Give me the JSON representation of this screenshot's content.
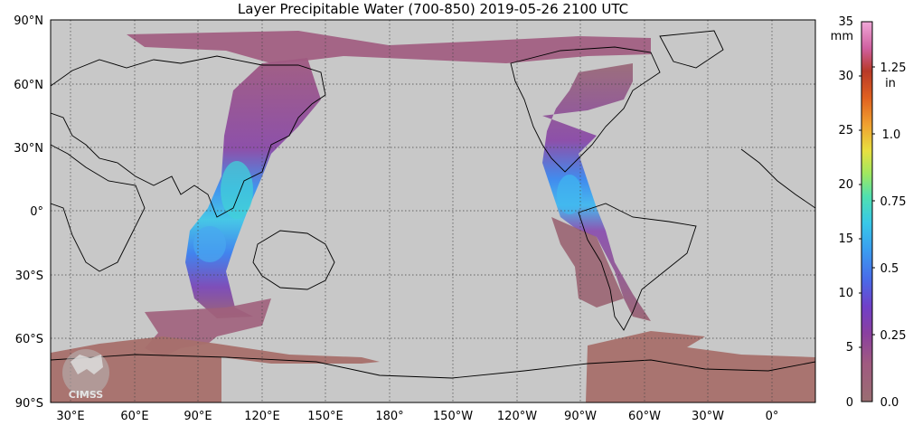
{
  "title": "Layer Precipitable Water (700-850)  2019-05-26 2100 UTC",
  "lat_labels": [
    "90°N",
    "60°N",
    "30°N",
    "0°",
    "30°S",
    "60°S",
    "90°S"
  ],
  "lon_labels": [
    "30°E",
    "60°E",
    "90°E",
    "120°E",
    "150°E",
    "180°",
    "150°W",
    "120°W",
    "90°W",
    "60°W",
    "30°W",
    "0°"
  ],
  "colorbar": {
    "mm_unit": "mm",
    "in_unit": "in",
    "mm_ticks": [
      "35",
      "30",
      "25",
      "20",
      "15",
      "10",
      "5",
      "0"
    ],
    "in_ticks": [
      "1.25",
      "1.0",
      "0.75",
      "0.5",
      "0.25",
      "0.0"
    ],
    "mm_max": 35,
    "colors": [
      "#9a6e72",
      "#a05a80",
      "#8a40a0",
      "#6a4ad0",
      "#3a80f0",
      "#38b8f0",
      "#40d8c8",
      "#88e860",
      "#e8e040",
      "#f0a030",
      "#e06020",
      "#c03020",
      "#e070b0",
      "#f0a0d8"
    ]
  },
  "watermark": "CIMSS",
  "colors": {
    "ocean_land_background": "#c8c8c8",
    "grid": "#444444",
    "coast": "#000000",
    "pw_low": "#9a6e72"
  }
}
